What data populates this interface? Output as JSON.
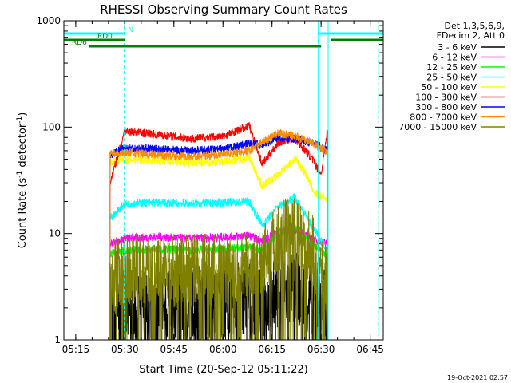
{
  "chart_data": {
    "type": "line",
    "title": "RHESSI Observing Summary Count Rates",
    "xlabel": "Start Time (20-Sep-12 05:11:22)",
    "ylabel_main": "Count Rate (s",
    "ylabel_sup1": "-1",
    "ylabel_mid": " detector",
    "ylabel_sup2": "-1",
    "ylabel_end": ")",
    "ylog": true,
    "xlim": [
      "05:11:22",
      "06:49:00"
    ],
    "ylim": [
      1,
      1000
    ],
    "x_ticks": [
      "05:15",
      "05:30",
      "05:45",
      "06:00",
      "06:15",
      "06:30",
      "06:45"
    ],
    "y_ticks": [
      "1",
      "10",
      "100",
      "1000"
    ],
    "timestamp": "19-Oct-2021 02:57",
    "legend_header": [
      "Det 1,3,5,6,9,",
      "FDecim 2, Att 0"
    ],
    "legend_placement": "right",
    "series": [
      {
        "name": "3 - 6 keV",
        "color": "#000000",
        "x": [
          "05:25:30",
          "05:30:00",
          "05:40:00",
          "05:50:00",
          "06:00:00",
          "06:08:00",
          "06:12:00",
          "06:17:00",
          "06:22:00",
          "06:27:00",
          "06:32:00"
        ],
        "values": [
          1.5,
          1.8,
          2.0,
          2.2,
          2.4,
          2.5,
          2.2,
          2.7,
          3.0,
          2.5,
          2.0
        ]
      },
      {
        "name": "6 - 12 keV",
        "color": "#ff00ff",
        "x": [
          "05:25:30",
          "05:30:00",
          "05:40:00",
          "05:50:00",
          "06:00:00",
          "06:08:00",
          "06:12:00",
          "06:17:00",
          "06:22:00",
          "06:27:00",
          "06:32:00"
        ],
        "values": [
          8.0,
          9.0,
          9.3,
          9.0,
          9.3,
          9.5,
          8.5,
          10.5,
          11.0,
          9.0,
          8.0
        ]
      },
      {
        "name": "12 - 25 keV",
        "color": "#00ff00",
        "x": [
          "05:25:30",
          "05:30:00",
          "05:40:00",
          "05:50:00",
          "06:00:00",
          "06:08:00",
          "06:12:00",
          "06:17:00",
          "06:22:00",
          "06:27:00",
          "06:32:00"
        ],
        "values": [
          6.5,
          7.0,
          7.2,
          7.0,
          7.2,
          7.4,
          7.0,
          10.0,
          11.5,
          8.0,
          6.0
        ]
      },
      {
        "name": "25 - 50 keV",
        "color": "#00ffff",
        "x": [
          "05:25:30",
          "05:30:00",
          "05:40:00",
          "05:50:00",
          "06:00:00",
          "06:08:00",
          "06:12:00",
          "06:17:00",
          "06:22:00",
          "06:27:00",
          "06:32:00"
        ],
        "values": [
          14.0,
          19.0,
          19.5,
          19.0,
          19.5,
          20.0,
          12.0,
          18.0,
          22.0,
          12.0,
          7.0
        ]
      },
      {
        "name": "50 - 100 keV",
        "color": "#ffff00",
        "x": [
          "05:25:30",
          "05:30:00",
          "05:40:00",
          "05:50:00",
          "06:00:00",
          "06:08:00",
          "06:12:00",
          "06:17:00",
          "06:22:00",
          "06:25:00",
          "06:28:00",
          "06:32:00"
        ],
        "values": [
          47.0,
          50.0,
          48.0,
          46.0,
          47.0,
          52.0,
          28.0,
          36.0,
          50.0,
          38.0,
          24.0,
          21.0
        ]
      },
      {
        "name": "100 - 300 keV",
        "color": "#ff0000",
        "x": [
          "05:25:30",
          "05:30:00",
          "05:40:00",
          "05:50:00",
          "06:00:00",
          "06:08:00",
          "06:12:00",
          "06:17:00",
          "06:22:00",
          "06:27:00",
          "06:30:00",
          "06:32:00"
        ],
        "values": [
          30.0,
          92.0,
          85.0,
          78.0,
          82.0,
          103.0,
          45.0,
          72.0,
          78.0,
          52.0,
          36.0,
          95.0
        ]
      },
      {
        "name": "300 - 800 keV",
        "color": "#0000ff",
        "x": [
          "05:25:30",
          "05:30:00",
          "05:40:00",
          "05:50:00",
          "06:00:00",
          "06:08:00",
          "06:12:00",
          "06:17:00",
          "06:22:00",
          "06:27:00",
          "06:32:00"
        ],
        "values": [
          55.0,
          64.0,
          62.0,
          60.0,
          62.0,
          70.0,
          68.0,
          80.0,
          78.0,
          72.0,
          60.0
        ]
      },
      {
        "name": "800 - 7000 keV",
        "color": "#ff8c00",
        "x": [
          "05:25:30",
          "05:30:00",
          "05:40:00",
          "05:50:00",
          "06:00:00",
          "06:08:00",
          "06:12:00",
          "06:17:00",
          "06:22:00",
          "06:27:00",
          "06:32:00"
        ],
        "values": [
          57.0,
          58.0,
          55.0,
          53.0,
          55.0,
          60.0,
          72.0,
          88.0,
          82.0,
          72.0,
          58.0
        ]
      },
      {
        "name": "7000 - 15000 keV",
        "color": "#808000",
        "x": [
          "05:25:30",
          "05:30:00",
          "05:40:00",
          "05:50:00",
          "06:00:00",
          "06:08:00",
          "06:12:00",
          "06:17:00",
          "06:22:00",
          "06:27:00",
          "06:32:00"
        ],
        "values": [
          4.0,
          4.5,
          4.4,
          4.4,
          4.6,
          4.8,
          6.0,
          9.0,
          10.5,
          7.0,
          4.0
        ]
      }
    ],
    "flag_bars": [
      {
        "label": "N",
        "color": "#00ffff",
        "segments": [
          [
            "05:11:22",
            "05:30:00"
          ],
          [
            "06:29:00",
            "06:49:00"
          ]
        ],
        "level": 1
      },
      {
        "label": "RD0",
        "color": "#008000",
        "segments": [
          [
            "05:11:22",
            "05:30:00"
          ],
          [
            "06:33:00",
            "06:49:00"
          ]
        ],
        "level": 2
      },
      {
        "label": "RD6",
        "color": "#008000",
        "segments": [
          [
            "05:19:00",
            "05:30:00"
          ],
          [
            "05:30:00",
            "06:11:00"
          ],
          [
            "06:11:00",
            "06:30:00"
          ]
        ],
        "level": 3
      }
    ],
    "vertical_markers": [
      {
        "x": "05:29:50",
        "color": "#00ffff",
        "style": "dashed"
      },
      {
        "x": "06:29:10",
        "color": "#00ffff",
        "style": "solid"
      },
      {
        "x": "06:32:10",
        "color": "#00ffff",
        "style": "solid"
      },
      {
        "x": "06:47:30",
        "color": "#00ffff",
        "style": "dashed"
      }
    ]
  }
}
